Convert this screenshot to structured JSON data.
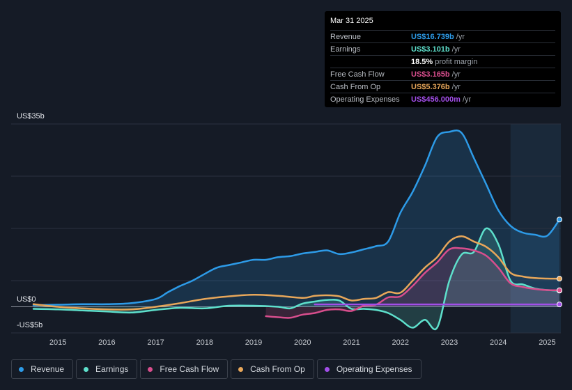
{
  "chart_data": {
    "type": "area",
    "y_top_label": "US$35b",
    "y_zero_label": "US$0",
    "y_bottom_label": "-US$5b",
    "ylim": [
      -5,
      35
    ],
    "xlim": [
      2014.5,
      2025.25
    ],
    "x_ticks": [
      "2015",
      "2016",
      "2017",
      "2018",
      "2019",
      "2020",
      "2021",
      "2022",
      "2023",
      "2024",
      "2025"
    ],
    "forecast_start": 2024.25,
    "series": [
      {
        "name": "Revenue",
        "color": "#2d9be8",
        "fill": true,
        "points": [
          [
            2014.5,
            0.3
          ],
          [
            2015,
            0.4
          ],
          [
            2015.5,
            0.5
          ],
          [
            2016,
            0.5
          ],
          [
            2016.5,
            0.7
          ],
          [
            2017,
            1.5
          ],
          [
            2017.25,
            2.8
          ],
          [
            2017.5,
            4.0
          ],
          [
            2017.75,
            5.0
          ],
          [
            2018,
            6.3
          ],
          [
            2018.25,
            7.5
          ],
          [
            2018.5,
            8.0
          ],
          [
            2018.75,
            8.5
          ],
          [
            2019,
            9.0
          ],
          [
            2019.25,
            9.0
          ],
          [
            2019.5,
            9.5
          ],
          [
            2019.75,
            9.7
          ],
          [
            2020,
            10.2
          ],
          [
            2020.25,
            10.5
          ],
          [
            2020.5,
            10.8
          ],
          [
            2020.75,
            10.1
          ],
          [
            2021,
            10.4
          ],
          [
            2021.25,
            11.0
          ],
          [
            2021.5,
            11.6
          ],
          [
            2021.75,
            12.5
          ],
          [
            2022,
            18.0
          ],
          [
            2022.25,
            22.0
          ],
          [
            2022.5,
            27.0
          ],
          [
            2022.75,
            32.5
          ],
          [
            2023,
            33.5
          ],
          [
            2023.25,
            33.3
          ],
          [
            2023.5,
            28.5
          ],
          [
            2023.75,
            23.5
          ],
          [
            2024,
            18.5
          ],
          [
            2024.25,
            15.5
          ],
          [
            2024.5,
            14.2
          ],
          [
            2024.75,
            13.8
          ],
          [
            2025,
            13.6
          ],
          [
            2025.25,
            16.7
          ]
        ]
      },
      {
        "name": "Earnings",
        "color": "#5ee0cc",
        "fill": true,
        "points": [
          [
            2014.5,
            -0.4
          ],
          [
            2015,
            -0.5
          ],
          [
            2015.5,
            -0.7
          ],
          [
            2016,
            -0.9
          ],
          [
            2016.5,
            -1.1
          ],
          [
            2017,
            -0.6
          ],
          [
            2017.5,
            -0.2
          ],
          [
            2018,
            -0.3
          ],
          [
            2018.5,
            0.2
          ],
          [
            2019,
            0.2
          ],
          [
            2019.5,
            0.0
          ],
          [
            2019.75,
            -0.3
          ],
          [
            2020,
            0.6
          ],
          [
            2020.25,
            1.0
          ],
          [
            2020.5,
            1.3
          ],
          [
            2020.75,
            1.2
          ],
          [
            2021,
            -0.4
          ],
          [
            2021.25,
            -0.4
          ],
          [
            2021.5,
            -0.6
          ],
          [
            2021.75,
            -1.2
          ],
          [
            2022,
            -2.5
          ],
          [
            2022.25,
            -4.0
          ],
          [
            2022.5,
            -2.5
          ],
          [
            2022.75,
            -4.0
          ],
          [
            2023,
            5.0
          ],
          [
            2023.25,
            10.0
          ],
          [
            2023.5,
            10.5
          ],
          [
            2023.75,
            15.0
          ],
          [
            2024,
            12.0
          ],
          [
            2024.25,
            5.0
          ],
          [
            2024.5,
            4.3
          ],
          [
            2024.75,
            3.5
          ],
          [
            2025,
            3.2
          ],
          [
            2025.25,
            3.1
          ]
        ]
      },
      {
        "name": "Free Cash Flow",
        "color": "#d84e8d",
        "fill": true,
        "points": [
          [
            2019.25,
            -1.8
          ],
          [
            2019.5,
            -2.0
          ],
          [
            2019.75,
            -2.1
          ],
          [
            2020,
            -1.5
          ],
          [
            2020.25,
            -1.2
          ],
          [
            2020.5,
            -0.6
          ],
          [
            2020.75,
            -0.5
          ],
          [
            2021,
            -0.8
          ],
          [
            2021.25,
            0.2
          ],
          [
            2021.5,
            0.4
          ],
          [
            2021.75,
            1.8
          ],
          [
            2022,
            2.0
          ],
          [
            2022.25,
            4.0
          ],
          [
            2022.5,
            6.5
          ],
          [
            2022.75,
            8.5
          ],
          [
            2023,
            11.0
          ],
          [
            2023.25,
            11.2
          ],
          [
            2023.5,
            10.8
          ],
          [
            2023.75,
            9.8
          ],
          [
            2024,
            7.5
          ],
          [
            2024.25,
            4.5
          ],
          [
            2024.5,
            3.8
          ],
          [
            2024.75,
            3.4
          ],
          [
            2025,
            3.2
          ],
          [
            2025.25,
            3.165
          ]
        ]
      },
      {
        "name": "Cash From Op",
        "color": "#e8a75a",
        "fill": false,
        "points": [
          [
            2014.5,
            0.5
          ],
          [
            2015,
            0.0
          ],
          [
            2015.5,
            -0.3
          ],
          [
            2016,
            -0.5
          ],
          [
            2016.5,
            -0.5
          ],
          [
            2017,
            0.0
          ],
          [
            2017.5,
            0.7
          ],
          [
            2018,
            1.5
          ],
          [
            2018.5,
            2.0
          ],
          [
            2019,
            2.3
          ],
          [
            2019.5,
            2.1
          ],
          [
            2020,
            1.7
          ],
          [
            2020.25,
            2.1
          ],
          [
            2020.5,
            2.2
          ],
          [
            2020.75,
            2.0
          ],
          [
            2021,
            1.2
          ],
          [
            2021.25,
            1.5
          ],
          [
            2021.5,
            1.7
          ],
          [
            2021.75,
            2.8
          ],
          [
            2022,
            2.7
          ],
          [
            2022.25,
            5.0
          ],
          [
            2022.5,
            7.5
          ],
          [
            2022.75,
            9.5
          ],
          [
            2023,
            12.5
          ],
          [
            2023.25,
            13.5
          ],
          [
            2023.5,
            12.5
          ],
          [
            2023.75,
            11.5
          ],
          [
            2024,
            9.5
          ],
          [
            2024.25,
            6.5
          ],
          [
            2024.5,
            5.8
          ],
          [
            2024.75,
            5.5
          ],
          [
            2025,
            5.4
          ],
          [
            2025.25,
            5.376
          ]
        ]
      },
      {
        "name": "Operating Expenses",
        "color": "#a24ee8",
        "fill": false,
        "points": [
          [
            2020.25,
            0.456
          ],
          [
            2021,
            0.456
          ],
          [
            2022,
            0.456
          ],
          [
            2023,
            0.456
          ],
          [
            2024,
            0.456
          ],
          [
            2025.25,
            0.456
          ]
        ]
      }
    ]
  },
  "tooltip": {
    "date": "Mar 31 2025",
    "rows": [
      {
        "label": "Revenue",
        "value": "US$16.739b",
        "unit": "/yr",
        "color": "#2d9be8"
      },
      {
        "label": "Earnings",
        "value": "US$3.101b",
        "unit": "/yr",
        "color": "#5ee0cc"
      },
      {
        "label": "",
        "value": "18.5%",
        "unit": "profit margin",
        "color": "#ffffff"
      },
      {
        "label": "Free Cash Flow",
        "value": "US$3.165b",
        "unit": "/yr",
        "color": "#d84e8d"
      },
      {
        "label": "Cash From Op",
        "value": "US$5.376b",
        "unit": "/yr",
        "color": "#e8a75a"
      },
      {
        "label": "Operating Expenses",
        "value": "US$456.000m",
        "unit": "/yr",
        "color": "#a24ee8"
      }
    ]
  },
  "legend": [
    {
      "label": "Revenue",
      "color": "#2d9be8"
    },
    {
      "label": "Earnings",
      "color": "#5ee0cc"
    },
    {
      "label": "Free Cash Flow",
      "color": "#d84e8d"
    },
    {
      "label": "Cash From Op",
      "color": "#e8a75a"
    },
    {
      "label": "Operating Expenses",
      "color": "#a24ee8"
    }
  ]
}
